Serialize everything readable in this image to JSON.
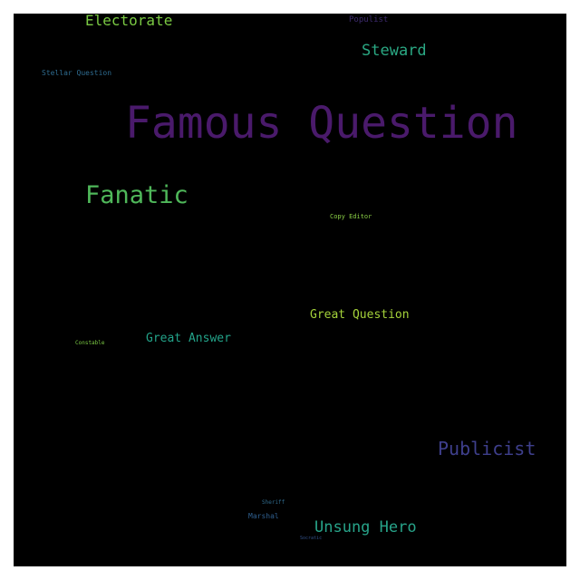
{
  "wordcloud": {
    "words": [
      {
        "text": "Famous Question",
        "color": "#4a1a6b"
      },
      {
        "text": "Fanatic",
        "color": "#4fb85a"
      },
      {
        "text": "Electorate",
        "color": "#7ac943"
      },
      {
        "text": "Steward",
        "color": "#2aa883"
      },
      {
        "text": "Populist",
        "color": "#3d2a6e"
      },
      {
        "text": "Stellar Question",
        "color": "#2e6b8f"
      },
      {
        "text": "Copy Editor",
        "color": "#8bd046"
      },
      {
        "text": "Great Question",
        "color": "#a4d23a"
      },
      {
        "text": "Great Answer",
        "color": "#23a48a"
      },
      {
        "text": "Constable",
        "color": "#7ac943"
      },
      {
        "text": "Publicist",
        "color": "#3e3f8c"
      },
      {
        "text": "Unsung Hero",
        "color": "#27a389"
      },
      {
        "text": "Marshal",
        "color": "#2f5f8f"
      },
      {
        "text": "Sheriff",
        "color": "#2f6a8c"
      },
      {
        "text": "Socratic",
        "color": "#34528c"
      }
    ]
  }
}
